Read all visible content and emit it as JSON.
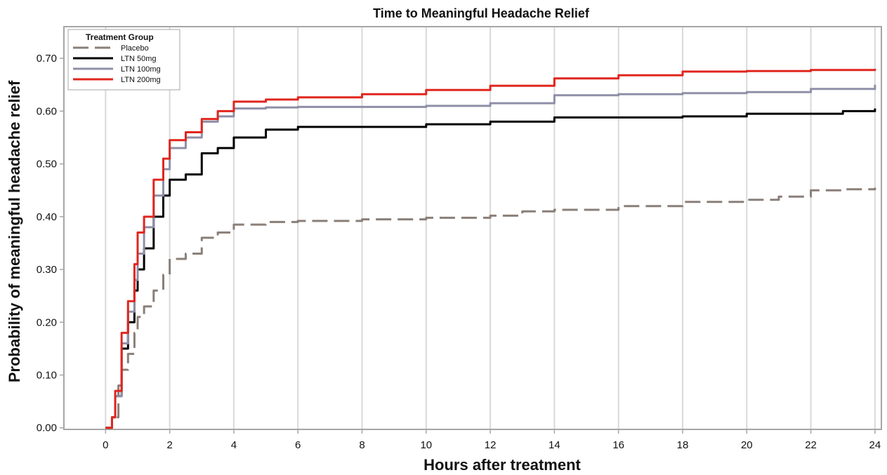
{
  "chart_data": {
    "type": "line",
    "title": "Time to Meaningful Headache Relief",
    "xlabel": "Hours after treatment",
    "ylabel": "Probability of meaningful headache relief",
    "xlim": [
      -1.3,
      24.2
    ],
    "ylim": [
      -0.003,
      0.76
    ],
    "xticks": [
      "0",
      "2",
      "4",
      "6",
      "8",
      "10",
      "12",
      "14",
      "16",
      "18",
      "20",
      "22",
      "24"
    ],
    "yticks": [
      "0.00",
      "0.10",
      "0.20",
      "0.30",
      "0.40",
      "0.50",
      "0.60",
      "0.70"
    ],
    "grid": "vertical",
    "legend": {
      "title": "Treatment Group",
      "position": "top-left"
    },
    "series": [
      {
        "name": "Placebo",
        "color": "#8a7f78",
        "style": "dashed",
        "x": [
          0,
          0.2,
          0.4,
          0.5,
          0.7,
          0.9,
          1.0,
          1.2,
          1.5,
          1.8,
          2.0,
          2.5,
          3.0,
          3.5,
          4.0,
          5.0,
          6.0,
          8.0,
          10.0,
          12.0,
          13.0,
          14.0,
          16.0,
          18.0,
          20.0,
          21.0,
          22.0,
          23.0,
          24.0
        ],
        "y": [
          0.0,
          0.02,
          0.08,
          0.11,
          0.14,
          0.18,
          0.21,
          0.23,
          0.26,
          0.29,
          0.32,
          0.33,
          0.36,
          0.37,
          0.385,
          0.39,
          0.392,
          0.395,
          0.398,
          0.402,
          0.41,
          0.413,
          0.42,
          0.428,
          0.432,
          0.438,
          0.45,
          0.452,
          0.455
        ]
      },
      {
        "name": "LTN 50mg",
        "color": "#000000",
        "style": "solid",
        "x": [
          0,
          0.2,
          0.3,
          0.5,
          0.7,
          0.9,
          1.0,
          1.2,
          1.5,
          1.8,
          2.0,
          2.5,
          3.0,
          3.5,
          4.0,
          5.0,
          6.0,
          8.0,
          10.0,
          12.0,
          14.0,
          16.0,
          18.0,
          20.0,
          22.0,
          23.0,
          24.0
        ],
        "y": [
          0.0,
          0.02,
          0.06,
          0.15,
          0.2,
          0.26,
          0.3,
          0.34,
          0.4,
          0.44,
          0.47,
          0.48,
          0.52,
          0.53,
          0.55,
          0.565,
          0.57,
          0.57,
          0.575,
          0.58,
          0.588,
          0.588,
          0.59,
          0.595,
          0.595,
          0.6,
          0.605
        ]
      },
      {
        "name": "LTN 100mg",
        "color": "#8f8fa8",
        "style": "solid",
        "x": [
          0,
          0.2,
          0.3,
          0.5,
          0.7,
          0.9,
          1.0,
          1.2,
          1.5,
          1.8,
          2.0,
          2.5,
          3.0,
          3.5,
          4.0,
          5.0,
          6.0,
          8.0,
          10.0,
          12.0,
          14.0,
          16.0,
          18.0,
          20.0,
          22.0,
          24.0
        ],
        "y": [
          0.0,
          0.02,
          0.06,
          0.16,
          0.22,
          0.28,
          0.33,
          0.38,
          0.44,
          0.49,
          0.53,
          0.55,
          0.58,
          0.59,
          0.605,
          0.607,
          0.608,
          0.608,
          0.61,
          0.615,
          0.63,
          0.632,
          0.634,
          0.636,
          0.642,
          0.65
        ]
      },
      {
        "name": "LTN 200mg",
        "color": "#e0261f",
        "style": "solid",
        "x": [
          0,
          0.2,
          0.3,
          0.5,
          0.7,
          0.9,
          1.0,
          1.2,
          1.5,
          1.8,
          2.0,
          2.5,
          3.0,
          3.5,
          4.0,
          5.0,
          6.0,
          8.0,
          10.0,
          12.0,
          14.0,
          16.0,
          18.0,
          20.0,
          22.0,
          24.0
        ],
        "y": [
          0.0,
          0.02,
          0.07,
          0.18,
          0.24,
          0.31,
          0.37,
          0.4,
          0.47,
          0.51,
          0.545,
          0.56,
          0.585,
          0.6,
          0.618,
          0.622,
          0.626,
          0.632,
          0.64,
          0.648,
          0.662,
          0.668,
          0.675,
          0.676,
          0.678,
          0.68
        ]
      }
    ]
  }
}
